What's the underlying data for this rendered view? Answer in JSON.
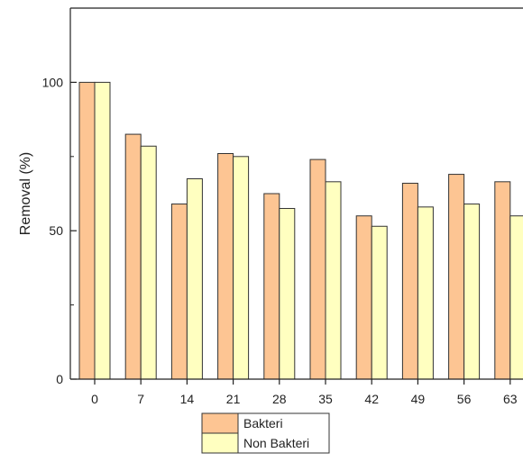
{
  "chart_data": {
    "type": "bar",
    "title": "",
    "xlabel": "",
    "ylabel": "Removal (%)",
    "categories": [
      "0",
      "7",
      "14",
      "21",
      "28",
      "35",
      "42",
      "49",
      "56",
      "63"
    ],
    "series": [
      {
        "name": "Bakteri",
        "color": "#fdc593",
        "values": [
          100,
          82.5,
          59,
          76,
          62.5,
          74,
          55,
          66,
          69,
          66.5
        ]
      },
      {
        "name": "Non Bakteri",
        "color": "#ffffc0",
        "values": [
          100,
          78.5,
          67.5,
          75,
          57.5,
          66.5,
          51.5,
          58,
          59,
          55
        ]
      }
    ],
    "ylim": [
      0,
      125
    ],
    "yticks": [
      0,
      50,
      100
    ],
    "grid": false,
    "legend_position": "bottom-center",
    "bar_edge_color": "#333333"
  }
}
